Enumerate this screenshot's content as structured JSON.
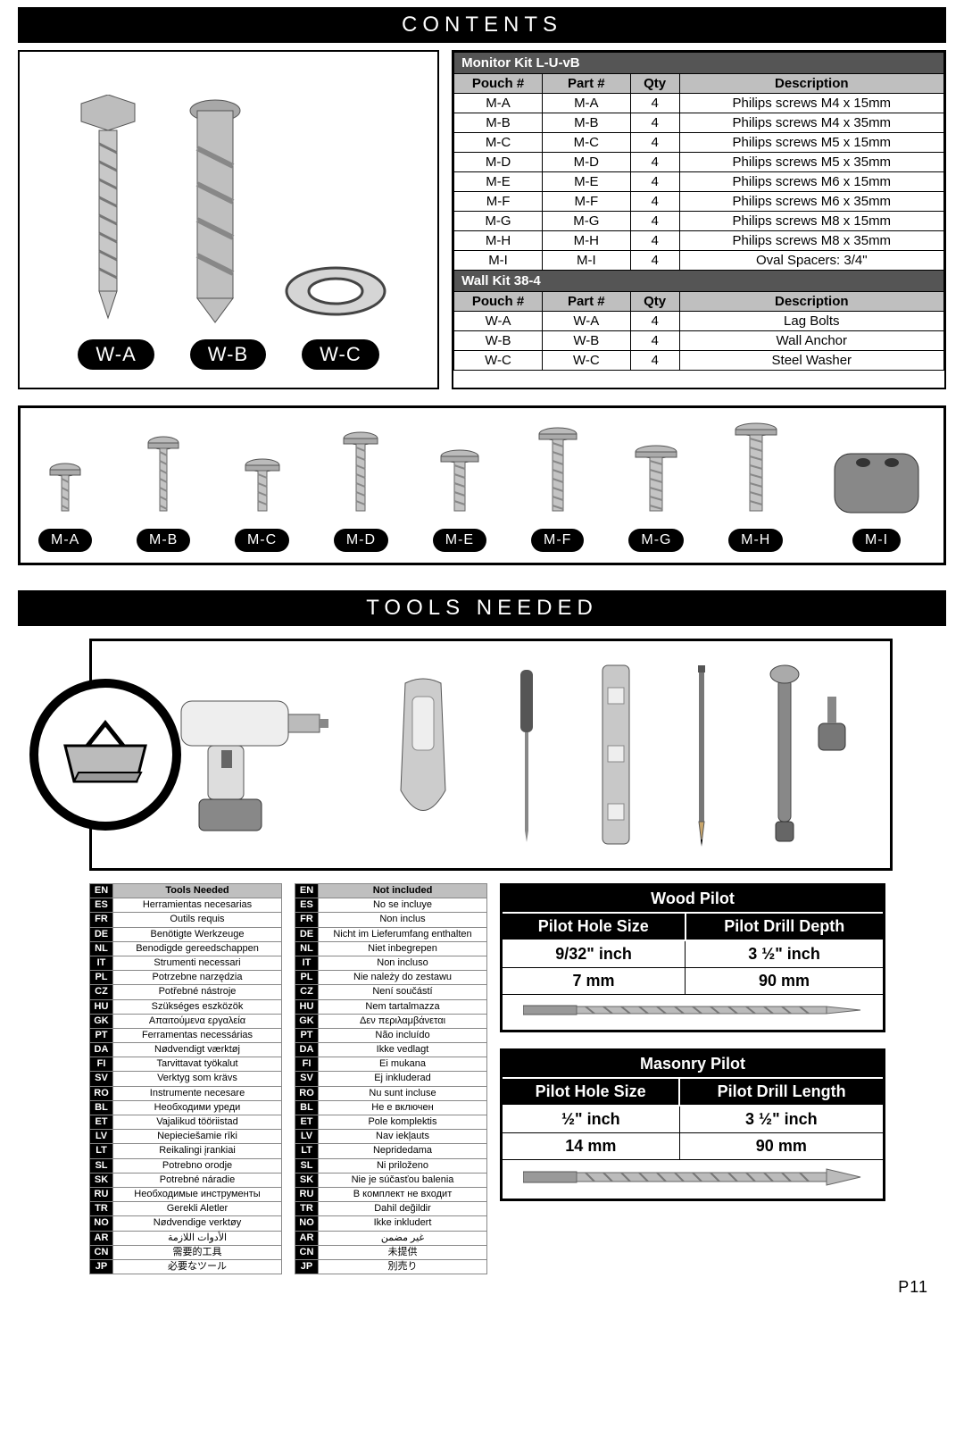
{
  "page_number": "P11",
  "banners": {
    "contents": "CONTENTS",
    "tools": "TOOLS NEEDED"
  },
  "w_parts": [
    "W-A",
    "W-B",
    "W-C"
  ],
  "m_parts": [
    "M-A",
    "M-B",
    "M-C",
    "M-D",
    "M-E",
    "M-F",
    "M-G",
    "M-H",
    "M-I"
  ],
  "monitor_kit": {
    "title": "Monitor Kit L-U-vB",
    "columns": [
      "Pouch #",
      "Part #",
      "Qty",
      "Description"
    ],
    "rows": [
      [
        "M-A",
        "M-A",
        "4",
        "Philips screws M4 x 15mm"
      ],
      [
        "M-B",
        "M-B",
        "4",
        "Philips screws M4 x 35mm"
      ],
      [
        "M-C",
        "M-C",
        "4",
        "Philips screws M5 x 15mm"
      ],
      [
        "M-D",
        "M-D",
        "4",
        "Philips screws M5 x 35mm"
      ],
      [
        "M-E",
        "M-E",
        "4",
        "Philips screws M6 x 15mm"
      ],
      [
        "M-F",
        "M-F",
        "4",
        "Philips screws M6 x 35mm"
      ],
      [
        "M-G",
        "M-G",
        "4",
        "Philips screws M8 x 15mm"
      ],
      [
        "M-H",
        "M-H",
        "4",
        "Philips screws M8 x 35mm"
      ],
      [
        "M-I",
        "M-I",
        "4",
        "Oval Spacers: 3/4\""
      ]
    ]
  },
  "wall_kit": {
    "title": "Wall Kit 38-4",
    "columns": [
      "Pouch #",
      "Part #",
      "Qty",
      "Description"
    ],
    "rows": [
      [
        "W-A",
        "W-A",
        "4",
        "Lag Bolts"
      ],
      [
        "W-B",
        "W-B",
        "4",
        "Wall Anchor"
      ],
      [
        "W-C",
        "W-C",
        "4",
        "Steel Washer"
      ]
    ]
  },
  "tools_needed_lang": {
    "header": [
      "EN",
      "Tools Needed"
    ],
    "rows": [
      [
        "ES",
        "Herramientas necesarias"
      ],
      [
        "FR",
        "Outils requis"
      ],
      [
        "DE",
        "Benötigte Werkzeuge"
      ],
      [
        "NL",
        "Benodigde gereedschappen"
      ],
      [
        "IT",
        "Strumenti necessari"
      ],
      [
        "PL",
        "Potrzebne narzędzia"
      ],
      [
        "CZ",
        "Potřebné nástroje"
      ],
      [
        "HU",
        "Szükséges eszközök"
      ],
      [
        "GK",
        "Απαιτούμενα εργαλεία"
      ],
      [
        "PT",
        "Ferramentas necessárias"
      ],
      [
        "DA",
        "Nødvendigt værktøj"
      ],
      [
        "FI",
        "Tarvittavat työkalut"
      ],
      [
        "SV",
        "Verktyg som krävs"
      ],
      [
        "RO",
        "Instrumente necesare"
      ],
      [
        "BL",
        "Необходими уреди"
      ],
      [
        "ET",
        "Vajalikud tööriistad"
      ],
      [
        "LV",
        "Nepieciešamie rīki"
      ],
      [
        "LT",
        "Reikalingi įrankiai"
      ],
      [
        "SL",
        "Potrebno orodje"
      ],
      [
        "SK",
        "Potrebné náradie"
      ],
      [
        "RU",
        "Необходимые инструменты"
      ],
      [
        "TR",
        "Gerekli Aletler"
      ],
      [
        "NO",
        "Nødvendige verktøy"
      ],
      [
        "AR",
        "الأدوات اللازمة"
      ],
      [
        "CN",
        "需要的工具"
      ],
      [
        "JP",
        "必要なツール"
      ]
    ]
  },
  "not_included_lang": {
    "header": [
      "EN",
      "Not included"
    ],
    "rows": [
      [
        "ES",
        "No se incluye"
      ],
      [
        "FR",
        "Non inclus"
      ],
      [
        "DE",
        "Nicht im Lieferumfang enthalten"
      ],
      [
        "NL",
        "Niet inbegrepen"
      ],
      [
        "IT",
        "Non incluso"
      ],
      [
        "PL",
        "Nie należy do zestawu"
      ],
      [
        "CZ",
        "Není součástí"
      ],
      [
        "HU",
        "Nem tartalmazza"
      ],
      [
        "GK",
        "Δεν περιλαμβάνεται"
      ],
      [
        "PT",
        "Não incluído"
      ],
      [
        "DA",
        "Ikke vedlagt"
      ],
      [
        "FI",
        "Ei mukana"
      ],
      [
        "SV",
        "Ej inkluderad"
      ],
      [
        "RO",
        "Nu sunt incluse"
      ],
      [
        "BL",
        "Не е включен"
      ],
      [
        "ET",
        "Pole komplektis"
      ],
      [
        "LV",
        "Nav iekļauts"
      ],
      [
        "LT",
        "Nepridedama"
      ],
      [
        "SL",
        "Ni priloženo"
      ],
      [
        "SK",
        "Nie je súčasťou balenia"
      ],
      [
        "RU",
        "В комплект не входит"
      ],
      [
        "TR",
        "Dahil değildir"
      ],
      [
        "NO",
        "Ikke inkludert"
      ],
      [
        "AR",
        "غير مضمن"
      ],
      [
        "CN",
        "未提供"
      ],
      [
        "JP",
        "別売り"
      ]
    ]
  },
  "wood_pilot": {
    "title": "Wood Pilot",
    "col1": "Pilot Hole Size",
    "col2": "Pilot Drill Depth",
    "r1": [
      "9/32\" inch",
      "3 ½\" inch"
    ],
    "r2": [
      "7 mm",
      "90 mm"
    ]
  },
  "masonry_pilot": {
    "title": "Masonry Pilot",
    "col1": "Pilot Hole Size",
    "col2": "Pilot Drill Length",
    "r1": [
      "½\" inch",
      "3 ½\" inch"
    ],
    "r2": [
      "14 mm",
      "90 mm"
    ]
  },
  "layout": {
    "screw_heights": [
      40,
      70,
      45,
      75,
      55,
      80,
      60,
      85
    ],
    "colors": {
      "banner_bg": "#000000",
      "banner_fg": "#ffffff",
      "table_title_bg": "#555555",
      "table_hdr_bg": "#bfbfbf",
      "border": "#000000"
    }
  }
}
